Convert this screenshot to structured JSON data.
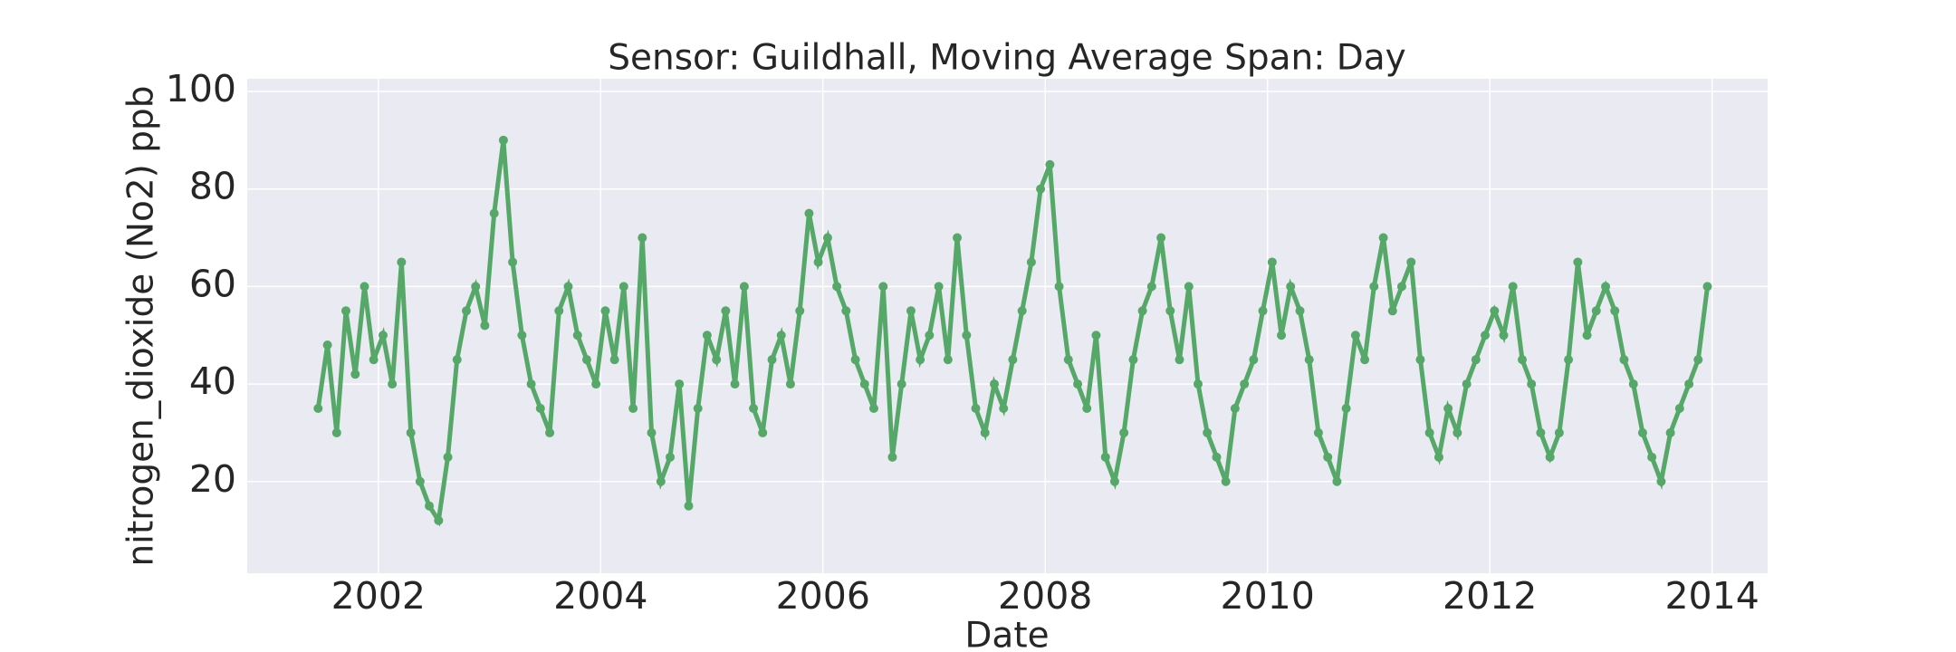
{
  "chart_data": {
    "type": "line",
    "title": "Sensor: Guildhall, Moving Average Span: Day",
    "x_label": "Date",
    "y_label": "nitrogen_dioxide (No2) ppb",
    "xlim": [
      2000.82,
      2014.5
    ],
    "xticks": [
      2002,
      2004,
      2006,
      2008,
      2010,
      2012,
      2014
    ],
    "ylim": [
      1.2,
      102.6
    ],
    "yticks": [
      20,
      40,
      60,
      80,
      100
    ],
    "grid": true,
    "markers": true,
    "series": [
      {
        "name": "No2",
        "color": "#55a868",
        "x": [
          2001.458,
          2001.542,
          2001.625,
          2001.708,
          2001.792,
          2001.875,
          2001.958,
          2002.042,
          2002.125,
          2002.208,
          2002.292,
          2002.375,
          2002.458,
          2002.542,
          2002.625,
          2002.708,
          2002.792,
          2002.875,
          2002.958,
          2003.042,
          2003.125,
          2003.208,
          2003.292,
          2003.375,
          2003.458,
          2003.542,
          2003.625,
          2003.708,
          2003.792,
          2003.875,
          2003.958,
          2004.042,
          2004.125,
          2004.208,
          2004.292,
          2004.375,
          2004.458,
          2004.542,
          2004.625,
          2004.708,
          2004.792,
          2004.875,
          2004.958,
          2005.042,
          2005.125,
          2005.208,
          2005.292,
          2005.375,
          2005.458,
          2005.542,
          2005.625,
          2005.708,
          2005.792,
          2005.875,
          2005.958,
          2006.042,
          2006.125,
          2006.208,
          2006.292,
          2006.375,
          2006.458,
          2006.542,
          2006.625,
          2006.708,
          2006.792,
          2006.875,
          2006.958,
          2007.042,
          2007.125,
          2007.208,
          2007.292,
          2007.375,
          2007.458,
          2007.542,
          2007.625,
          2007.708,
          2007.792,
          2007.875,
          2007.958,
          2008.042,
          2008.125,
          2008.208,
          2008.292,
          2008.375,
          2008.458,
          2008.542,
          2008.625,
          2008.708,
          2008.792,
          2008.875,
          2008.958,
          2009.042,
          2009.125,
          2009.208,
          2009.292,
          2009.375,
          2009.458,
          2009.542,
          2009.625,
          2009.708,
          2009.792,
          2009.875,
          2009.958,
          2010.042,
          2010.125,
          2010.208,
          2010.292,
          2010.375,
          2010.458,
          2010.542,
          2010.625,
          2010.708,
          2010.792,
          2010.875,
          2010.958,
          2011.042,
          2011.125,
          2011.208,
          2011.292,
          2011.375,
          2011.458,
          2011.542,
          2011.625,
          2011.708,
          2011.792,
          2011.875,
          2011.958,
          2012.042,
          2012.125,
          2012.208,
          2012.292,
          2012.375,
          2012.458,
          2012.542,
          2012.625,
          2012.708,
          2012.792,
          2012.875,
          2012.958,
          2013.042,
          2013.125,
          2013.208,
          2013.292,
          2013.375,
          2013.458,
          2013.542,
          2013.625,
          2013.708,
          2013.792,
          2013.875,
          2013.958
        ],
        "values": [
          35,
          48,
          30,
          55,
          42,
          60,
          45,
          50,
          40,
          65,
          30,
          20,
          15,
          12,
          25,
          45,
          55,
          60,
          52,
          75,
          90,
          65,
          50,
          40,
          35,
          30,
          55,
          60,
          50,
          45,
          40,
          55,
          45,
          60,
          35,
          70,
          30,
          20,
          25,
          40,
          15,
          35,
          50,
          45,
          55,
          40,
          60,
          35,
          30,
          45,
          50,
          40,
          55,
          75,
          65,
          70,
          60,
          55,
          45,
          40,
          35,
          60,
          25,
          40,
          55,
          45,
          50,
          60,
          45,
          70,
          50,
          35,
          30,
          40,
          35,
          45,
          55,
          65,
          80,
          85,
          60,
          45,
          40,
          35,
          50,
          25,
          20,
          30,
          45,
          55,
          60,
          70,
          55,
          45,
          60,
          40,
          30,
          25,
          20,
          35,
          40,
          45,
          55,
          65,
          50,
          60,
          55,
          45,
          30,
          25,
          20,
          35,
          50,
          45,
          60,
          70,
          55,
          60,
          65,
          45,
          30,
          25,
          35,
          30,
          40,
          45,
          50,
          55,
          50,
          60,
          45,
          40,
          30,
          25,
          30,
          45,
          65,
          50,
          55,
          60,
          55,
          45,
          40,
          30,
          25,
          20,
          30,
          35,
          40,
          45,
          60
        ]
      }
    ]
  }
}
